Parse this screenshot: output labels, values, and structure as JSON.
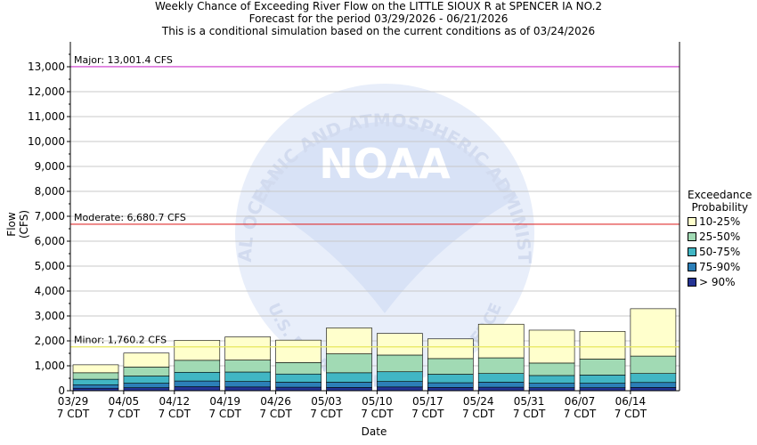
{
  "title": {
    "line1": "Weekly Chance of Exceeding River Flow on the LITTLE SIOUX R at SPENCER IA NO.2",
    "line2": "Forecast for the period 03/29/2026 - 06/21/2026",
    "line3": "This is a conditional simulation based on the current conditions as of 03/24/2026"
  },
  "watermark": {
    "logo_text": "NOAA",
    "arc_top": "NATIONAL OCEANIC AND ATMOSPHERIC ADMINISTRATION",
    "arc_bottom": "U.S. DEPARTMENT OF COMMERCE"
  },
  "colors": {
    "p10_25": "#ffffcc",
    "p25_50": "#a1dab4",
    "p50_75": "#41b6c4",
    "p75_90": "#2c7fb8",
    "p90": "#253494",
    "major": "#cc33cc",
    "moderate": "#e03030",
    "minor": "#e6e65c"
  },
  "chart_data": {
    "type": "bar",
    "stacked": true,
    "xlabel": "Date",
    "ylabel": "Flow (CFS)",
    "ylim": [
      0,
      14000
    ],
    "yticks": [
      0,
      1000,
      2000,
      3000,
      4000,
      5000,
      6000,
      7000,
      8000,
      9000,
      10000,
      11000,
      12000,
      13000
    ],
    "ytick_labels": [
      "0",
      "1,000",
      "2,000",
      "3,000",
      "4,000",
      "5,000",
      "6,000",
      "7,000",
      "8,000",
      "9,000",
      "10,000",
      "11,000",
      "12,000",
      "13,000"
    ],
    "categories": [
      "03/29",
      "04/05",
      "04/12",
      "04/19",
      "04/26",
      "05/03",
      "05/10",
      "05/17",
      "05/24",
      "05/31",
      "06/07",
      "06/14"
    ],
    "category_sublabel": "7 CDT",
    "legend_title": [
      "Exceedance",
      "Probability"
    ],
    "series": [
      {
        "name": "> 90%",
        "color_key": "p90",
        "values": [
          100,
          120,
          160,
          150,
          140,
          130,
          150,
          130,
          140,
          120,
          120,
          130
        ]
      },
      {
        "name": "75-90%",
        "color_key": "p75_90",
        "values": [
          140,
          180,
          230,
          220,
          200,
          210,
          220,
          190,
          200,
          180,
          180,
          200
        ]
      },
      {
        "name": "50-75%",
        "color_key": "p50_75",
        "values": [
          220,
          290,
          350,
          380,
          330,
          380,
          390,
          340,
          350,
          310,
          330,
          360
        ]
      },
      {
        "name": "25-50%",
        "color_key": "p25_50",
        "values": [
          260,
          360,
          480,
          480,
          460,
          760,
          670,
          630,
          630,
          500,
          640,
          700
        ]
      },
      {
        "name": "10-25%",
        "color_key": "p10_25",
        "values": [
          320,
          560,
          800,
          930,
          900,
          1040,
          870,
          790,
          1350,
          1320,
          1110,
          1900
        ]
      }
    ],
    "thresholds": [
      {
        "label": "Major: 13,001.4 CFS",
        "value": 13001.4,
        "color_key": "major"
      },
      {
        "label": "Moderate: 6,680.7 CFS",
        "value": 6680.7,
        "color_key": "moderate"
      },
      {
        "label": "Minor: 1,760.2 CFS",
        "value": 1760.2,
        "color_key": "minor"
      }
    ],
    "grid": true,
    "legend_position": "right"
  }
}
